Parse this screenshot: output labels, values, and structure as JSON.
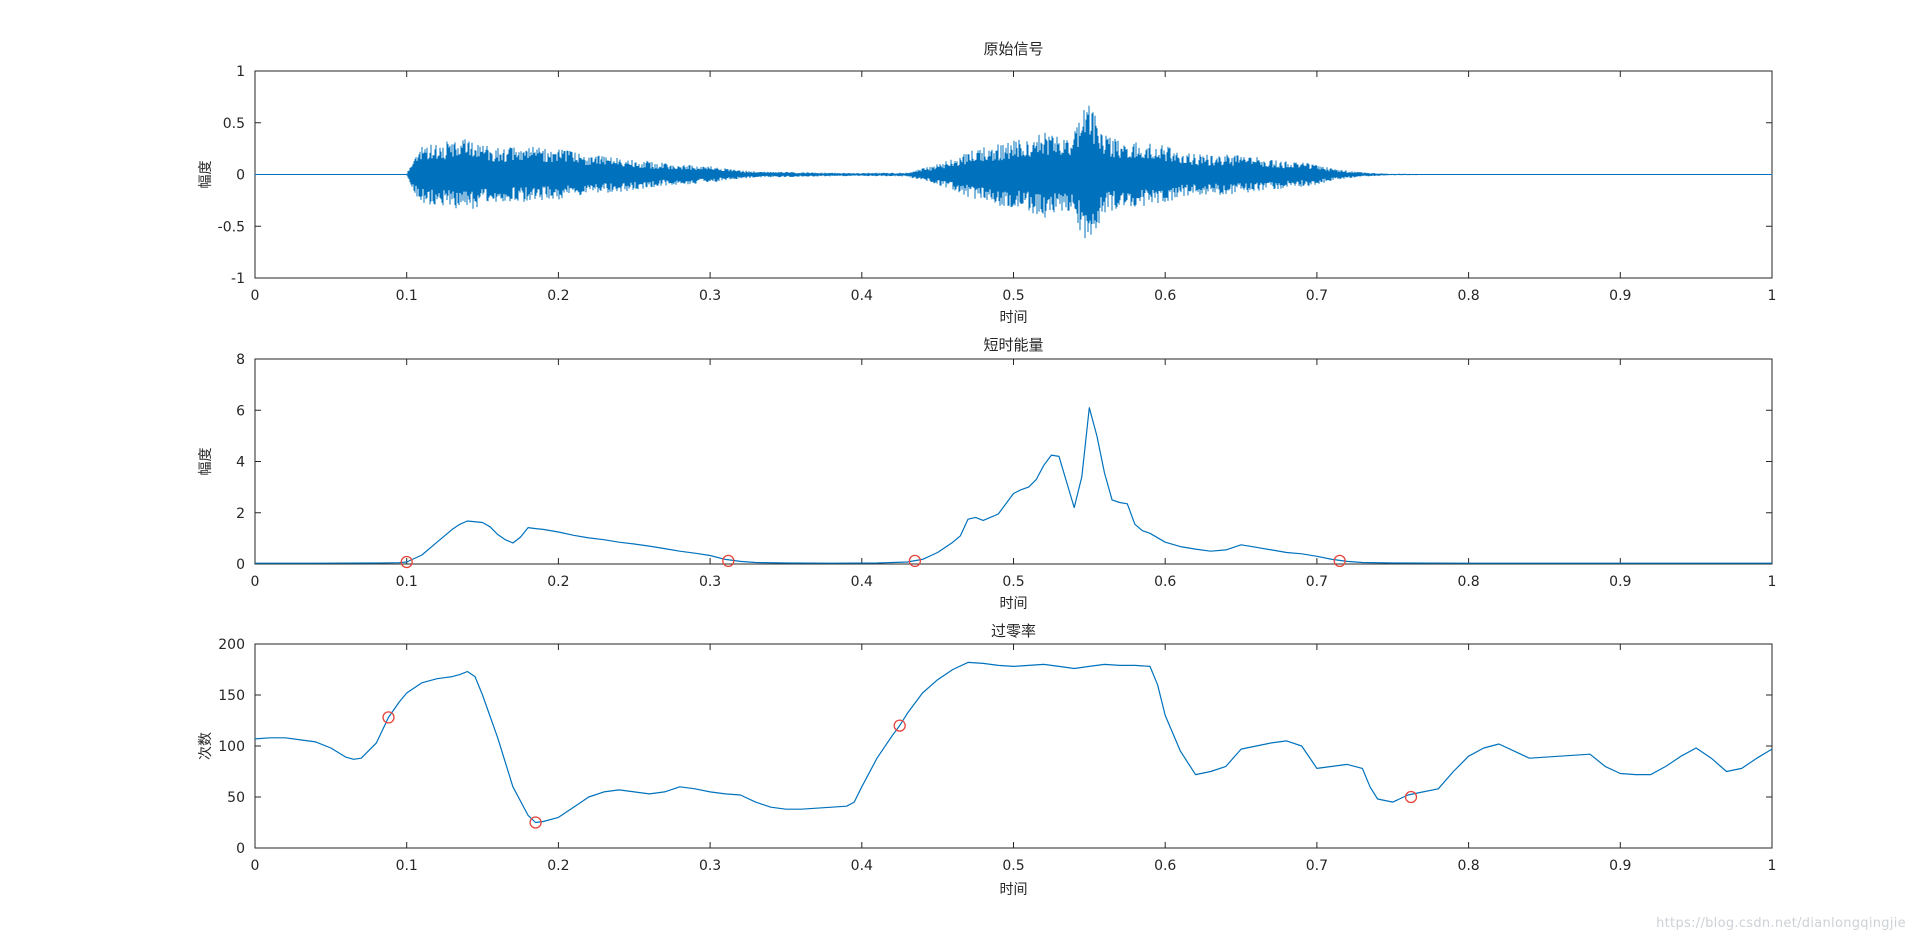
{
  "watermark": "https://blog.csdn.net/dianlongqingjie",
  "colors": {
    "line": "#0072BD",
    "marker": "#e6453c",
    "axis": "#262626",
    "background": "#ffffff",
    "watermark": "#ccd2d8"
  },
  "chart_data": [
    {
      "type": "line",
      "kind": "waveform",
      "title": "原始信号",
      "xlabel": "时间",
      "ylabel": "幅度",
      "xlim": [
        0,
        1
      ],
      "ylim": [
        -1,
        1
      ],
      "xticks": [
        0,
        0.1,
        0.2,
        0.3,
        0.4,
        0.5,
        0.6,
        0.7,
        0.8,
        0.9,
        1
      ],
      "yticks": [
        -1,
        -0.5,
        0,
        0.5,
        1
      ],
      "grid": false,
      "envelope": [
        [
          0,
          0.004
        ],
        [
          0.1,
          0.004
        ],
        [
          0.105,
          0.18
        ],
        [
          0.11,
          0.28
        ],
        [
          0.115,
          0.32
        ],
        [
          0.12,
          0.3
        ],
        [
          0.13,
          0.33
        ],
        [
          0.14,
          0.35
        ],
        [
          0.15,
          0.3
        ],
        [
          0.16,
          0.27
        ],
        [
          0.17,
          0.26
        ],
        [
          0.18,
          0.27
        ],
        [
          0.19,
          0.26
        ],
        [
          0.2,
          0.25
        ],
        [
          0.21,
          0.22
        ],
        [
          0.22,
          0.2
        ],
        [
          0.23,
          0.18
        ],
        [
          0.24,
          0.17
        ],
        [
          0.25,
          0.15
        ],
        [
          0.26,
          0.13
        ],
        [
          0.27,
          0.11
        ],
        [
          0.28,
          0.1
        ],
        [
          0.29,
          0.09
        ],
        [
          0.3,
          0.08
        ],
        [
          0.31,
          0.06
        ],
        [
          0.32,
          0.04
        ],
        [
          0.33,
          0.03
        ],
        [
          0.35,
          0.025
        ],
        [
          0.37,
          0.02
        ],
        [
          0.4,
          0.015
        ],
        [
          0.43,
          0.02
        ],
        [
          0.44,
          0.06
        ],
        [
          0.45,
          0.1
        ],
        [
          0.46,
          0.15
        ],
        [
          0.47,
          0.22
        ],
        [
          0.48,
          0.26
        ],
        [
          0.49,
          0.3
        ],
        [
          0.5,
          0.33
        ],
        [
          0.51,
          0.36
        ],
        [
          0.52,
          0.42
        ],
        [
          0.53,
          0.38
        ],
        [
          0.54,
          0.4
        ],
        [
          0.548,
          0.72
        ],
        [
          0.552,
          0.66
        ],
        [
          0.56,
          0.38
        ],
        [
          0.57,
          0.33
        ],
        [
          0.58,
          0.32
        ],
        [
          0.59,
          0.3
        ],
        [
          0.6,
          0.28
        ],
        [
          0.61,
          0.22
        ],
        [
          0.62,
          0.2
        ],
        [
          0.63,
          0.19
        ],
        [
          0.64,
          0.2
        ],
        [
          0.65,
          0.18
        ],
        [
          0.66,
          0.17
        ],
        [
          0.67,
          0.15
        ],
        [
          0.68,
          0.13
        ],
        [
          0.69,
          0.12
        ],
        [
          0.7,
          0.1
        ],
        [
          0.71,
          0.06
        ],
        [
          0.72,
          0.04
        ],
        [
          0.73,
          0.02
        ],
        [
          0.75,
          0.008
        ],
        [
          0.78,
          0.005
        ],
        [
          1,
          0.004
        ]
      ]
    },
    {
      "type": "line",
      "title": "短时能量",
      "xlabel": "时间",
      "ylabel": "幅度",
      "xlim": [
        0,
        1
      ],
      "ylim": [
        0,
        8
      ],
      "xticks": [
        0,
        0.1,
        0.2,
        0.3,
        0.4,
        0.5,
        0.6,
        0.7,
        0.8,
        0.9,
        1
      ],
      "yticks": [
        0,
        2,
        4,
        6,
        8
      ],
      "grid": false,
      "series": [
        {
          "name": "short-time-energy",
          "points": [
            [
              0,
              0.03
            ],
            [
              0.04,
              0.03
            ],
            [
              0.08,
              0.04
            ],
            [
              0.095,
              0.05
            ],
            [
              0.1,
              0.08
            ],
            [
              0.11,
              0.35
            ],
            [
              0.12,
              0.85
            ],
            [
              0.13,
              1.35
            ],
            [
              0.135,
              1.55
            ],
            [
              0.14,
              1.68
            ],
            [
              0.15,
              1.62
            ],
            [
              0.155,
              1.45
            ],
            [
              0.16,
              1.15
            ],
            [
              0.165,
              0.95
            ],
            [
              0.17,
              0.82
            ],
            [
              0.175,
              1.05
            ],
            [
              0.18,
              1.42
            ],
            [
              0.185,
              1.38
            ],
            [
              0.19,
              1.35
            ],
            [
              0.2,
              1.25
            ],
            [
              0.21,
              1.12
            ],
            [
              0.22,
              1.02
            ],
            [
              0.23,
              0.95
            ],
            [
              0.24,
              0.85
            ],
            [
              0.25,
              0.78
            ],
            [
              0.26,
              0.7
            ],
            [
              0.27,
              0.6
            ],
            [
              0.28,
              0.5
            ],
            [
              0.29,
              0.42
            ],
            [
              0.3,
              0.33
            ],
            [
              0.31,
              0.18
            ],
            [
              0.32,
              0.1
            ],
            [
              0.33,
              0.06
            ],
            [
              0.35,
              0.04
            ],
            [
              0.38,
              0.03
            ],
            [
              0.41,
              0.04
            ],
            [
              0.43,
              0.08
            ],
            [
              0.44,
              0.18
            ],
            [
              0.45,
              0.45
            ],
            [
              0.46,
              0.85
            ],
            [
              0.465,
              1.1
            ],
            [
              0.47,
              1.75
            ],
            [
              0.475,
              1.82
            ],
            [
              0.48,
              1.7
            ],
            [
              0.49,
              1.95
            ],
            [
              0.5,
              2.75
            ],
            [
              0.505,
              2.9
            ],
            [
              0.51,
              3.0
            ],
            [
              0.515,
              3.3
            ],
            [
              0.52,
              3.85
            ],
            [
              0.525,
              4.25
            ],
            [
              0.53,
              4.2
            ],
            [
              0.535,
              3.2
            ],
            [
              0.54,
              2.2
            ],
            [
              0.545,
              3.4
            ],
            [
              0.55,
              6.1
            ],
            [
              0.555,
              5.0
            ],
            [
              0.56,
              3.55
            ],
            [
              0.565,
              2.5
            ],
            [
              0.57,
              2.4
            ],
            [
              0.575,
              2.35
            ],
            [
              0.58,
              1.55
            ],
            [
              0.585,
              1.3
            ],
            [
              0.59,
              1.2
            ],
            [
              0.6,
              0.85
            ],
            [
              0.61,
              0.68
            ],
            [
              0.62,
              0.58
            ],
            [
              0.63,
              0.5
            ],
            [
              0.64,
              0.55
            ],
            [
              0.65,
              0.75
            ],
            [
              0.66,
              0.65
            ],
            [
              0.67,
              0.55
            ],
            [
              0.68,
              0.45
            ],
            [
              0.69,
              0.4
            ],
            [
              0.7,
              0.3
            ],
            [
              0.71,
              0.18
            ],
            [
              0.72,
              0.1
            ],
            [
              0.73,
              0.06
            ],
            [
              0.75,
              0.04
            ],
            [
              0.8,
              0.03
            ],
            [
              0.9,
              0.03
            ],
            [
              1,
              0.03
            ]
          ]
        }
      ],
      "markers": [
        [
          0.1,
          0.08
        ],
        [
          0.312,
          0.12
        ],
        [
          0.435,
          0.12
        ],
        [
          0.715,
          0.12
        ]
      ]
    },
    {
      "type": "line",
      "title": "过零率",
      "xlabel": "时间",
      "ylabel": "次数",
      "xlim": [
        0,
        1
      ],
      "ylim": [
        0,
        200
      ],
      "xticks": [
        0,
        0.1,
        0.2,
        0.3,
        0.4,
        0.5,
        0.6,
        0.7,
        0.8,
        0.9,
        1
      ],
      "yticks": [
        0,
        50,
        100,
        150,
        200
      ],
      "grid": false,
      "series": [
        {
          "name": "zero-crossing-rate",
          "points": [
            [
              0,
              107
            ],
            [
              0.01,
              108
            ],
            [
              0.02,
              108
            ],
            [
              0.03,
              106
            ],
            [
              0.04,
              104
            ],
            [
              0.05,
              98
            ],
            [
              0.06,
              89
            ],
            [
              0.065,
              87
            ],
            [
              0.07,
              88
            ],
            [
              0.08,
              103
            ],
            [
              0.088,
              128
            ],
            [
              0.095,
              143
            ],
            [
              0.1,
              152
            ],
            [
              0.11,
              162
            ],
            [
              0.12,
              166
            ],
            [
              0.125,
              167
            ],
            [
              0.13,
              168
            ],
            [
              0.135,
              170
            ],
            [
              0.14,
              173
            ],
            [
              0.145,
              168
            ],
            [
              0.15,
              150
            ],
            [
              0.16,
              108
            ],
            [
              0.17,
              60
            ],
            [
              0.18,
              32
            ],
            [
              0.185,
              25
            ],
            [
              0.19,
              26
            ],
            [
              0.2,
              30
            ],
            [
              0.21,
              40
            ],
            [
              0.22,
              50
            ],
            [
              0.23,
              55
            ],
            [
              0.24,
              57
            ],
            [
              0.25,
              55
            ],
            [
              0.26,
              53
            ],
            [
              0.27,
              55
            ],
            [
              0.28,
              60
            ],
            [
              0.29,
              58
            ],
            [
              0.3,
              55
            ],
            [
              0.31,
              53
            ],
            [
              0.32,
              52
            ],
            [
              0.33,
              45
            ],
            [
              0.34,
              40
            ],
            [
              0.35,
              38
            ],
            [
              0.36,
              38
            ],
            [
              0.37,
              39
            ],
            [
              0.38,
              40
            ],
            [
              0.39,
              41
            ],
            [
              0.395,
              45
            ],
            [
              0.4,
              60
            ],
            [
              0.41,
              88
            ],
            [
              0.42,
              110
            ],
            [
              0.425,
              120
            ],
            [
              0.43,
              132
            ],
            [
              0.44,
              152
            ],
            [
              0.45,
              165
            ],
            [
              0.46,
              175
            ],
            [
              0.47,
              182
            ],
            [
              0.48,
              181
            ],
            [
              0.49,
              179
            ],
            [
              0.5,
              178
            ],
            [
              0.51,
              179
            ],
            [
              0.52,
              180
            ],
            [
              0.53,
              178
            ],
            [
              0.54,
              176
            ],
            [
              0.55,
              178
            ],
            [
              0.56,
              180
            ],
            [
              0.57,
              179
            ],
            [
              0.58,
              179
            ],
            [
              0.59,
              178
            ],
            [
              0.595,
              160
            ],
            [
              0.6,
              130
            ],
            [
              0.61,
              95
            ],
            [
              0.62,
              72
            ],
            [
              0.63,
              75
            ],
            [
              0.64,
              80
            ],
            [
              0.65,
              97
            ],
            [
              0.66,
              100
            ],
            [
              0.67,
              103
            ],
            [
              0.68,
              105
            ],
            [
              0.69,
              100
            ],
            [
              0.7,
              78
            ],
            [
              0.71,
              80
            ],
            [
              0.72,
              82
            ],
            [
              0.73,
              78
            ],
            [
              0.735,
              60
            ],
            [
              0.74,
              48
            ],
            [
              0.75,
              45
            ],
            [
              0.76,
              52
            ],
            [
              0.77,
              55
            ],
            [
              0.78,
              58
            ],
            [
              0.79,
              75
            ],
            [
              0.8,
              90
            ],
            [
              0.81,
              98
            ],
            [
              0.82,
              102
            ],
            [
              0.83,
              95
            ],
            [
              0.84,
              88
            ],
            [
              0.85,
              89
            ],
            [
              0.86,
              90
            ],
            [
              0.87,
              91
            ],
            [
              0.88,
              92
            ],
            [
              0.89,
              80
            ],
            [
              0.9,
              73
            ],
            [
              0.91,
              72
            ],
            [
              0.92,
              72
            ],
            [
              0.93,
              80
            ],
            [
              0.94,
              90
            ],
            [
              0.95,
              98
            ],
            [
              0.96,
              88
            ],
            [
              0.97,
              75
            ],
            [
              0.98,
              78
            ],
            [
              0.99,
              88
            ],
            [
              1,
              97
            ]
          ]
        }
      ],
      "markers": [
        [
          0.088,
          128
        ],
        [
          0.185,
          25
        ],
        [
          0.425,
          120
        ],
        [
          0.762,
          50
        ]
      ]
    }
  ]
}
